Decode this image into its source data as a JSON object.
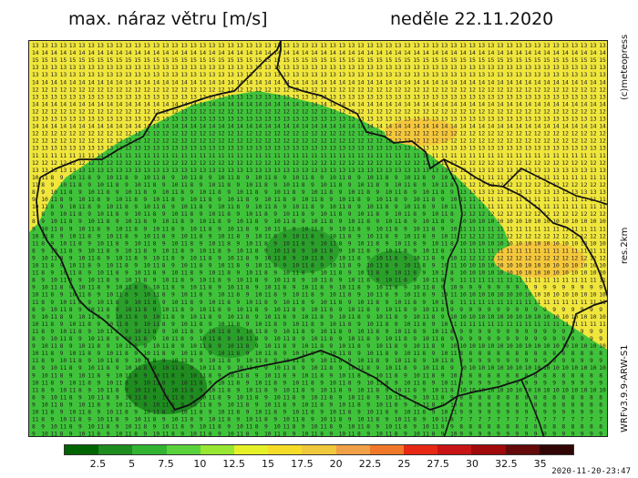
{
  "header": {
    "title": "max. náraz větru [m/s]",
    "date": "neděle 22.11.2020"
  },
  "side_labels": {
    "copyright": "(c)meteopress",
    "resolution": "res.2km",
    "model": "WRFv3.9.9-ARW-S1"
  },
  "legend": {
    "colors": [
      "#006400",
      "#1e8c1e",
      "#32b432",
      "#5ad23c",
      "#96e632",
      "#e6f028",
      "#f5dc28",
      "#f0c83c",
      "#f0a046",
      "#f07828",
      "#e62814",
      "#c81414",
      "#a00a0a",
      "#640a0a",
      "#320505"
    ],
    "labels": [
      "2.5",
      "5",
      "7.5",
      "10",
      "12.5",
      "15",
      "17.5",
      "20",
      "22.5",
      "25",
      "27.5",
      "30",
      "32.5",
      "35"
    ]
  },
  "footer": {
    "timestamp": "2020-11-20-23:47"
  }
}
